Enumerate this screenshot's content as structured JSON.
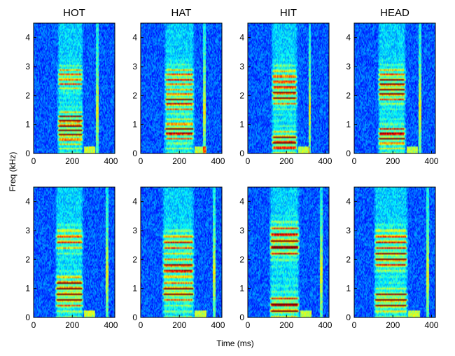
{
  "figure": {
    "ylabel": "Freq (kHz)",
    "xlabel": "Time (ms)"
  },
  "colors": {
    "background": "#ffffff",
    "colormap": [
      "#00008f",
      "#0000ff",
      "#0080ff",
      "#00ffff",
      "#80ff80",
      "#ffff00",
      "#ff8000",
      "#ff0000",
      "#800000"
    ]
  },
  "chart_data": [
    {
      "type": "heatmap",
      "title": "HOT",
      "row": 1,
      "xlim": [
        0,
        420
      ],
      "ylim": [
        0,
        4.5
      ],
      "xticks": [
        0,
        200,
        400
      ],
      "yticks": [
        0,
        1,
        2,
        3,
        4
      ],
      "voiced": [
        120,
        260
      ],
      "formants_khz": [
        0.7,
        1.1,
        2.6
      ],
      "spacing_khz": 0.16,
      "burst_ms": 330
    },
    {
      "type": "heatmap",
      "title": "HAT",
      "row": 1,
      "xlim": [
        0,
        420
      ],
      "ylim": [
        0,
        4.5
      ],
      "xticks": [
        0,
        200,
        400
      ],
      "yticks": [
        0,
        1,
        2,
        3,
        4
      ],
      "voiced": [
        120,
        280
      ],
      "formants_khz": [
        0.8,
        1.8,
        2.6
      ],
      "spacing_khz": 0.17,
      "burst_ms": 330
    },
    {
      "type": "heatmap",
      "title": "HIT",
      "row": 1,
      "xlim": [
        0,
        420
      ],
      "ylim": [
        0,
        4.5
      ],
      "xticks": [
        0,
        200,
        400
      ],
      "yticks": [
        0,
        1,
        2,
        3,
        4
      ],
      "voiced": [
        120,
        260
      ],
      "formants_khz": [
        0.4,
        2.0,
        2.6
      ],
      "spacing_khz": 0.19,
      "burst_ms": 320
    },
    {
      "type": "heatmap",
      "title": "HEAD",
      "row": 1,
      "xlim": [
        0,
        420
      ],
      "ylim": [
        0,
        4.5
      ],
      "xticks": [
        0,
        200,
        400
      ],
      "yticks": [
        0,
        1,
        2,
        3,
        4
      ],
      "voiced": [
        120,
        270
      ],
      "formants_khz": [
        0.6,
        2.1,
        2.6
      ],
      "spacing_khz": 0.17,
      "burst_ms": 340
    },
    {
      "type": "heatmap",
      "title": "",
      "row": 2,
      "xlim": [
        0,
        420
      ],
      "ylim": [
        0,
        4.5
      ],
      "xticks": [
        0,
        200,
        400
      ],
      "yticks": [
        0,
        1,
        2,
        3,
        4
      ],
      "voiced": [
        110,
        260
      ],
      "formants_khz": [
        0.7,
        1.1,
        2.7
      ],
      "spacing_khz": 0.2,
      "burst_ms": 380
    },
    {
      "type": "heatmap",
      "title": "",
      "row": 2,
      "xlim": [
        0,
        420
      ],
      "ylim": [
        0,
        4.5
      ],
      "xticks": [
        0,
        200,
        400
      ],
      "yticks": [
        0,
        1,
        2,
        3,
        4
      ],
      "voiced": [
        110,
        280
      ],
      "formants_khz": [
        0.9,
        1.7,
        2.6
      ],
      "spacing_khz": 0.2,
      "burst_ms": 380
    },
    {
      "type": "heatmap",
      "title": "",
      "row": 2,
      "xlim": [
        0,
        420
      ],
      "ylim": [
        0,
        4.5
      ],
      "xticks": [
        0,
        200,
        400
      ],
      "yticks": [
        0,
        1,
        2,
        3,
        4
      ],
      "voiced": [
        110,
        270
      ],
      "formants_khz": [
        0.4,
        2.4,
        2.9
      ],
      "spacing_khz": 0.22,
      "burst_ms": 380
    },
    {
      "type": "heatmap",
      "title": "",
      "row": 2,
      "xlim": [
        0,
        420
      ],
      "ylim": [
        0,
        4.5
      ],
      "xticks": [
        0,
        200,
        400
      ],
      "yticks": [
        0,
        1,
        2,
        3,
        4
      ],
      "voiced": [
        100,
        280
      ],
      "formants_khz": [
        0.6,
        2.0,
        2.7
      ],
      "spacing_khz": 0.2,
      "burst_ms": 380
    }
  ]
}
